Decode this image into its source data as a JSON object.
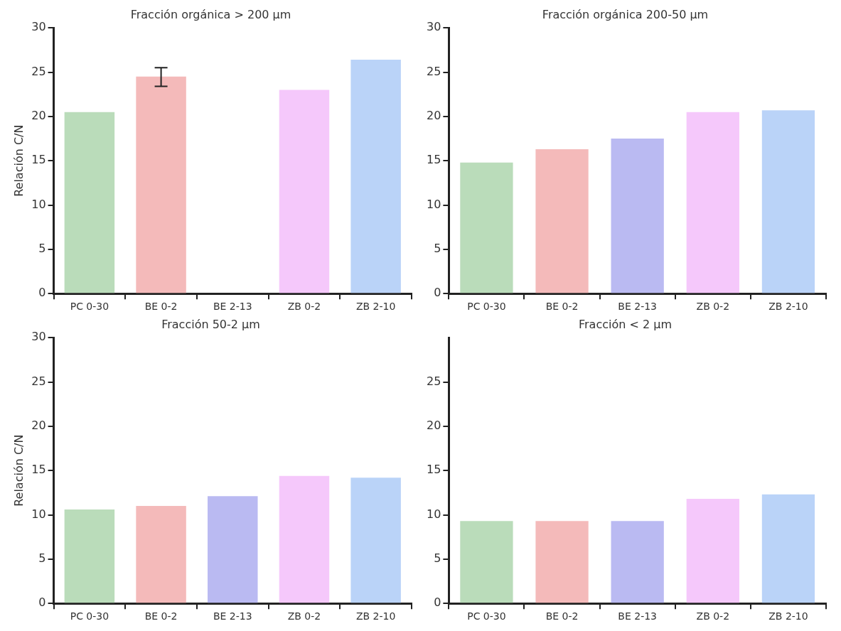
{
  "chart_data": [
    {
      "type": "bar",
      "title": "Fracción orgánica > 200 µm",
      "ylabel": "Relación C/N",
      "categories": [
        "PC 0-30",
        "BE 0-2",
        "BE 2-13",
        "ZB 0-2",
        "ZB 2-10"
      ],
      "values": [
        20.5,
        24.5,
        null,
        23.0,
        26.4
      ],
      "errors": [
        null,
        [
          23.4,
          25.5
        ],
        null,
        null,
        null
      ],
      "colors": [
        "#badcba",
        "#f4baba",
        "#babaf2",
        "#f5c8fb",
        "#bad3f8"
      ],
      "ylim": [
        0,
        30
      ],
      "yticks": [
        0,
        5,
        10,
        15,
        20,
        25,
        30
      ],
      "grid": false
    },
    {
      "type": "bar",
      "title": "Fracción orgánica 200-50 µm",
      "categories": [
        "PC 0-30",
        "BE 0-2",
        "BE 2-13",
        "ZB 0-2",
        "ZB 2-10"
      ],
      "values": [
        14.8,
        16.3,
        17.5,
        20.5,
        20.7
      ],
      "colors": [
        "#badcba",
        "#f4baba",
        "#babaf2",
        "#f5c8fb",
        "#bad3f8"
      ],
      "ylim": [
        0,
        30
      ],
      "yticks": [
        0,
        5,
        10,
        15,
        20,
        25,
        30
      ],
      "grid": false
    },
    {
      "type": "bar",
      "title": "Fracción 50-2 µm",
      "ylabel": "Relación C/N",
      "categories": [
        "PC 0-30",
        "BE 0-2",
        "BE 2-13",
        "ZB 0-2",
        "ZB 2-10"
      ],
      "values": [
        10.6,
        11.0,
        12.1,
        14.4,
        14.2
      ],
      "colors": [
        "#badcba",
        "#f4baba",
        "#babaf2",
        "#f5c8fb",
        "#bad3f8"
      ],
      "ylim": [
        0,
        30
      ],
      "yticks": [
        0,
        5,
        10,
        15,
        20,
        25,
        30
      ],
      "grid": false
    },
    {
      "type": "bar",
      "title": "Fracción < 2 µm",
      "categories": [
        "PC 0-30",
        "BE 0-2",
        "BE 2-13",
        "ZB 0-2",
        "ZB 2-10"
      ],
      "values": [
        9.3,
        9.3,
        9.3,
        11.8,
        12.3
      ],
      "colors": [
        "#badcba",
        "#f4baba",
        "#babaf2",
        "#f5c8fb",
        "#bad3f8"
      ],
      "ylim": [
        0,
        30
      ],
      "yticks": [
        0,
        5,
        10,
        15,
        20,
        25
      ],
      "grid": false
    }
  ]
}
